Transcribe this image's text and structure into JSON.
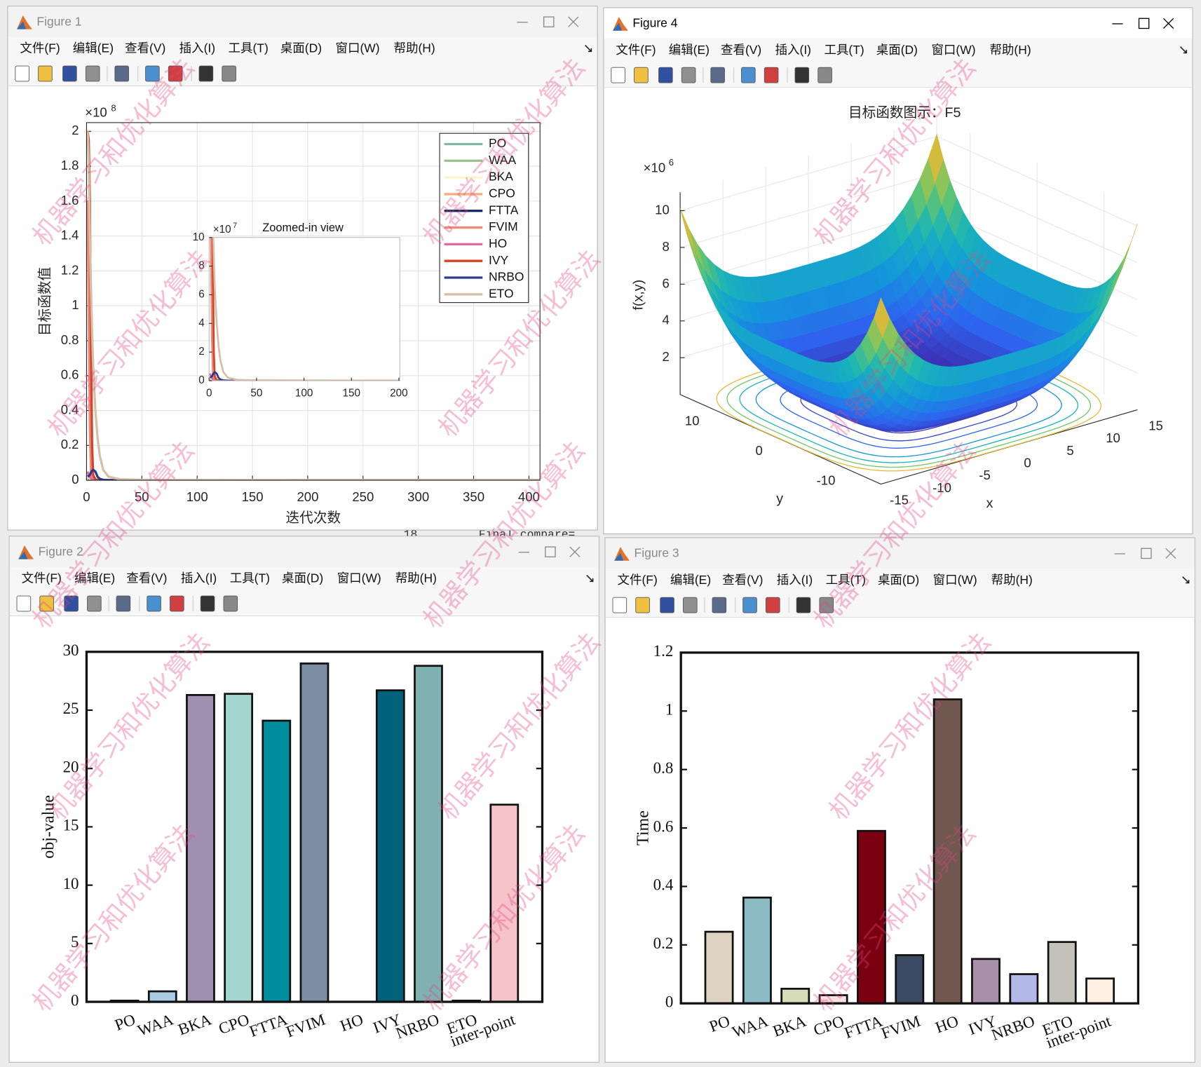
{
  "menu": [
    "文件(F)",
    "编辑(E)",
    "查看(V)",
    "插入(I)",
    "工具(T)",
    "桌面(D)",
    "窗口(W)",
    "帮助(H)"
  ],
  "windows": [
    {
      "title": "Figure 1"
    },
    {
      "title": "Figure 4"
    },
    {
      "title": "Figure 2"
    },
    {
      "title": "Figure 3"
    }
  ],
  "watermark": "机器学习和优化算法",
  "background_text": [
    "18",
    "Final compare="
  ],
  "chart_data": [
    {
      "type": "line",
      "xlabel": "迭代次数",
      "ylabel": "目标函数值",
      "y_exponent": {
        "base": "×10",
        "power": "8"
      },
      "x": [
        1,
        2,
        3,
        4,
        5,
        6,
        8,
        10,
        12,
        15,
        20,
        30,
        50,
        100,
        200,
        300,
        400,
        410
      ],
      "xlim": [
        0,
        410
      ],
      "xticks": [
        0,
        50,
        100,
        150,
        200,
        250,
        300,
        350,
        400
      ],
      "ylim": [
        0,
        205000000
      ],
      "yticks": [
        0,
        {
          "value": 20000000,
          "label": "0.2"
        },
        {
          "value": 40000000,
          "label": "0.4"
        },
        {
          "value": 60000000,
          "label": "0.6"
        },
        {
          "value": 80000000,
          "label": "0.8"
        },
        {
          "value": 100000000,
          "label": "1"
        },
        {
          "value": 120000000,
          "label": "1.2"
        },
        {
          "value": 140000000,
          "label": "1.4"
        },
        {
          "value": 160000000,
          "label": "1.6"
        },
        {
          "value": 180000000,
          "label": "1.8"
        },
        {
          "value": 200000000,
          "label": "2"
        }
      ],
      "grid": true,
      "legend": "upper right",
      "series": [
        {
          "name": "PO",
          "color": "#7fb9a2",
          "values": [
            800000.0,
            600000.0,
            500000.0,
            400000.0,
            300000.0,
            200000.0,
            100000.0,
            50000.0,
            30000.0,
            20000.0,
            10000.0,
            5000.0,
            1000.0,
            500,
            100,
            50,
            10,
            10
          ]
        },
        {
          "name": "WAA",
          "color": "#9dbf8e",
          "values": [
            1200000.0,
            1000000.0,
            800000.0,
            600000.0,
            400000.0,
            300000.0,
            200000.0,
            100000.0,
            50000.0,
            20000.0,
            10000.0,
            5000.0,
            2000.0,
            1000.0,
            500,
            200,
            100,
            100
          ]
        },
        {
          "name": "BKA",
          "color": "#fdf3c8",
          "values": [
            3000000.0,
            2000000.0,
            1000000.0,
            500000.0,
            300000.0,
            200000.0,
            100000.0,
            50000.0,
            30000.0,
            20000.0,
            10000.0,
            5000.0,
            2000.0,
            1000.0,
            500,
            200,
            100,
            100
          ]
        },
        {
          "name": "CPO",
          "color": "#f2b07a",
          "values": [
            4000000.0,
            3000000.0,
            2000000.0,
            1000000.0,
            500000.0,
            300000.0,
            200000.0,
            100000.0,
            50000.0,
            20000.0,
            10000.0,
            5000.0,
            2000.0,
            1000.0,
            500,
            200,
            100,
            100
          ]
        },
        {
          "name": "FTTA",
          "color": "#0c2461",
          "values": [
            3000000.0,
            3000000.0,
            2500000.0,
            2000000.0,
            1500000.0,
            1000000.0,
            500000.0,
            200000.0,
            100000.0,
            50000.0,
            20000.0,
            10000.0,
            5000.0,
            2000.0,
            1000.0,
            500,
            200,
            200
          ]
        },
        {
          "name": "FVIM",
          "color": "#f08a78",
          "values": [
            160000000.0,
            90000000.0,
            30000000.0,
            5000000.0,
            1000000.0,
            500000.0,
            200000.0,
            100000.0,
            50000.0,
            20000.0,
            10000.0,
            5000.0,
            2000.0,
            1000.0,
            500,
            200,
            100,
            100
          ]
        },
        {
          "name": "HO",
          "color": "#dc6aa0",
          "values": [
            5000000.0,
            3000000.0,
            2000000.0,
            1000000.0,
            500000.0,
            300000.0,
            200000.0,
            100000.0,
            50000.0,
            20000.0,
            10000.0,
            5000.0,
            2000.0,
            1000.0,
            500,
            200,
            100,
            100
          ]
        },
        {
          "name": "IVY",
          "color": "#d2452a",
          "values": [
            200000000.0,
            195000000.0,
            160000000.0,
            80000000.0,
            20000000.0,
            3000000.0,
            500000.0,
            100000.0,
            50000.0,
            20000.0,
            10000.0,
            5000.0,
            2000.0,
            1000.0,
            500,
            200,
            100,
            100
          ]
        },
        {
          "name": "NRBO",
          "color": "#2b3a8a",
          "values": [
            2000000.0,
            2500000.0,
            3000000.0,
            4500000.0,
            5500000.0,
            6000000.0,
            5000000.0,
            2000000.0,
            800000.0,
            300000.0,
            100000.0,
            50000.0,
            20000.0,
            10000.0,
            5000.0,
            2000.0,
            1000.0,
            1000.0
          ]
        },
        {
          "name": "ETO",
          "color": "#d5bfa6",
          "values": [
            200000000.0,
            180000000.0,
            140000000.0,
            110000000.0,
            85000000.0,
            65000000.0,
            40000000.0,
            24000000.0,
            14000000.0,
            6000000.0,
            2000000.0,
            600000.0,
            300000.0,
            200000.0,
            150000.0,
            100000.0,
            100000.0,
            100000.0
          ]
        }
      ],
      "inset": {
        "title": "Zoomed-in view",
        "xlim": [
          0,
          201
        ],
        "xticks": [
          0,
          50,
          100,
          150,
          200
        ],
        "ylim": [
          0,
          100000000
        ],
        "yticks": [
          0,
          {
            "value": 20000000,
            "label": "2"
          },
          {
            "value": 40000000,
            "label": "4"
          },
          {
            "value": 60000000,
            "label": "6"
          },
          {
            "value": 80000000,
            "label": "8"
          },
          {
            "value": 100000000,
            "label": "10"
          }
        ],
        "y_exponent": {
          "base": "×10",
          "power": "7"
        }
      }
    },
    {
      "type": "surface",
      "title": "目标函数图示：F5",
      "xlabel": "x",
      "ylabel": "y",
      "zlabel": "f(x,y)",
      "xlim": [
        -15,
        15
      ],
      "ylim": [
        -15,
        15
      ],
      "zlim": [
        0,
        11000000
      ],
      "xticks": [
        -15,
        -10,
        -5,
        0,
        5,
        10,
        15
      ],
      "yticks": [
        -10,
        0,
        10
      ],
      "zticks": [
        {
          "value": 2000000,
          "label": "2"
        },
        {
          "value": 4000000,
          "label": "4"
        },
        {
          "value": 6000000,
          "label": "6"
        },
        {
          "value": 8000000,
          "label": "8"
        },
        {
          "value": 10000000,
          "label": "10"
        }
      ],
      "z_exponent": {
        "base": "×10",
        "power": "6"
      },
      "colormap": "parula",
      "contour": true,
      "grid": true
    },
    {
      "type": "bar",
      "ylabel": "obj-value",
      "categories": [
        "PO",
        "WAA",
        "BKA",
        "CPO",
        "FTTA",
        "FVIM",
        "HO",
        "IVY",
        "NRBO",
        "ETO",
        "inter-point"
      ],
      "values": [
        0.1,
        0.9,
        26.3,
        26.4,
        24.1,
        29.0,
        0,
        26.7,
        28.8,
        0.1,
        16.9
      ],
      "colors": [
        "#8a8a8a",
        "#a9cbe3",
        "#a08fb0",
        "#a4d6d1",
        "#008e9f",
        "#7c8da4",
        "#c0c0c0",
        "#00627a",
        "#7fb1b1",
        "#8a8a8a",
        "#f5c3c8"
      ],
      "ylim": [
        0,
        30
      ],
      "yticks": [
        0,
        5,
        10,
        15,
        20,
        25,
        30
      ]
    },
    {
      "type": "bar",
      "ylabel": "Time",
      "categories": [
        "PO",
        "WAA",
        "BKA",
        "CPO",
        "FTTA",
        "FVIM",
        "HO",
        "IVY",
        "NRBO",
        "ETO",
        "inter-point"
      ],
      "values": [
        0.245,
        0.362,
        0.05,
        0.028,
        0.59,
        0.165,
        1.04,
        0.152,
        0.1,
        0.21,
        0.085
      ],
      "colors": [
        "#ddd3c0",
        "#8bbcc4",
        "#d6dcb8",
        "#f9e0e0",
        "#7a0010",
        "#3a4a62",
        "#705850",
        "#a890a8",
        "#b2b8e8",
        "#c2c2ba",
        "#fef0e2"
      ],
      "ylim": [
        0,
        1.2
      ],
      "yticks": [
        0,
        0.2,
        0.4,
        0.6,
        0.8,
        1,
        1.2
      ]
    }
  ]
}
